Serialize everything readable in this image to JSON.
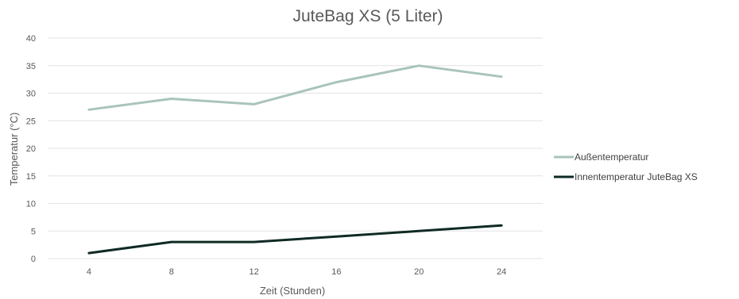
{
  "chart_data": {
    "type": "line",
    "title": "JuteBag XS (5 Liter)",
    "xlabel": "Zeit (Stunden)",
    "ylabel": "Temperatur (°C)",
    "categories": [
      "4",
      "8",
      "12",
      "16",
      "20",
      "24"
    ],
    "ylim": [
      0,
      40
    ],
    "yticks": [
      "0",
      "5",
      "10",
      "15",
      "20",
      "25",
      "30",
      "35",
      "40"
    ],
    "grid": true,
    "legend_position": "right",
    "series": [
      {
        "name": "Außentemperatur",
        "color": "#a9c4bb",
        "values": [
          27,
          29,
          28,
          32,
          35,
          33
        ]
      },
      {
        "name": "Innentemperatur JuteBag XS",
        "color": "#0f2a24",
        "values": [
          1,
          3,
          3,
          4,
          5,
          6
        ]
      }
    ]
  }
}
